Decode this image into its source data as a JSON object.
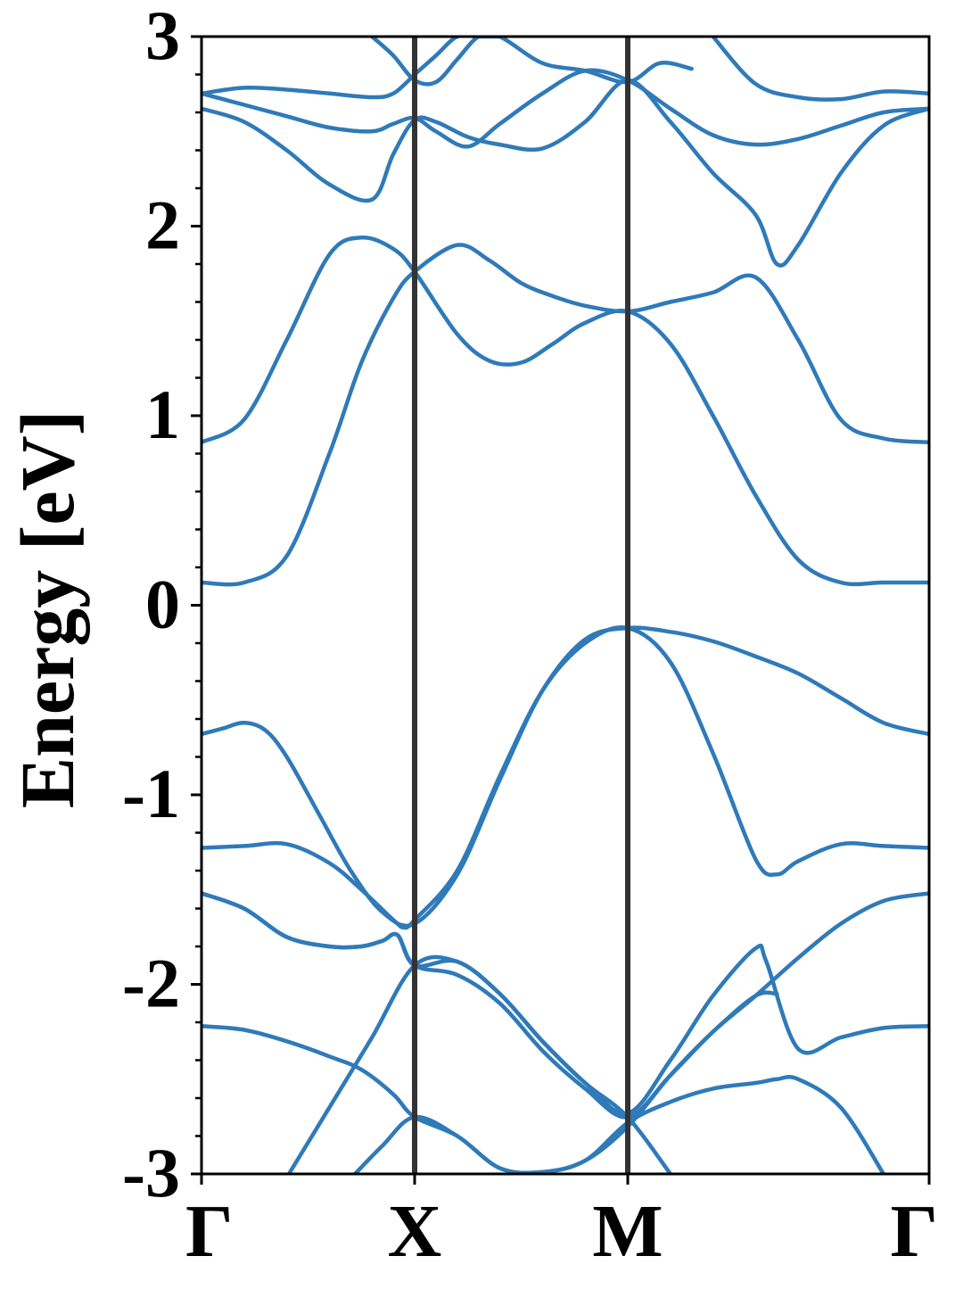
{
  "chart_data": {
    "type": "line",
    "title": "",
    "xlabel": "",
    "ylabel": "Energy [eV]",
    "xlim": [
      0,
      3.414
    ],
    "ylim": [
      -3,
      3
    ],
    "x_ticks": [
      {
        "value": 0,
        "label": "Γ"
      },
      {
        "value": 1,
        "label": "X"
      },
      {
        "value": 2,
        "label": "M"
      },
      {
        "value": 3.414,
        "label": "Γ"
      }
    ],
    "y_ticks": [
      {
        "value": -3,
        "label": "-3"
      },
      {
        "value": -2,
        "label": "-2"
      },
      {
        "value": -1,
        "label": "-1"
      },
      {
        "value": 0,
        "label": "0"
      },
      {
        "value": 1,
        "label": "1"
      },
      {
        "value": 2,
        "label": "2"
      },
      {
        "value": 3,
        "label": "3"
      }
    ],
    "y_minor_step": 0.2,
    "high_symmetry_lines": [
      1,
      2
    ],
    "grid": false,
    "line_color": "#2f7ab9",
    "divider_color": "#333333",
    "series": [
      {
        "x": [
          0,
          0.2,
          0.4,
          0.6,
          0.75,
          0.9,
          1.0,
          1.2,
          1.35,
          1.5,
          1.65,
          1.8,
          2.0,
          2.2,
          2.4,
          2.6,
          2.8,
          3.0,
          3.2,
          3.414
        ],
        "y": [
          0.12,
          0.12,
          0.26,
          0.8,
          1.28,
          1.62,
          1.76,
          1.9,
          1.82,
          1.7,
          1.63,
          1.58,
          1.55,
          1.6,
          1.65,
          1.73,
          1.4,
          0.98,
          0.88,
          0.86
        ]
      },
      {
        "x": [
          0,
          0.2,
          0.4,
          0.6,
          0.75,
          0.9,
          1.0,
          1.2,
          1.35,
          1.5,
          1.65,
          1.8,
          2.0,
          2.2,
          2.4,
          2.6,
          2.8,
          3.0,
          3.2,
          3.414
        ],
        "y": [
          0.86,
          0.98,
          1.4,
          1.85,
          1.94,
          1.88,
          1.76,
          1.43,
          1.29,
          1.28,
          1.38,
          1.49,
          1.55,
          1.38,
          1.0,
          0.58,
          0.24,
          0.12,
          0.12,
          0.12
        ]
      },
      {
        "x": [
          0,
          0.2,
          0.4,
          0.6,
          0.8,
          0.9,
          1.0,
          1.1,
          1.25,
          1.4,
          1.6,
          1.8,
          2.0,
          2.2,
          2.4,
          2.6,
          2.7,
          2.8,
          3.0,
          3.2,
          3.414
        ],
        "y": [
          2.62,
          2.55,
          2.4,
          2.22,
          2.14,
          2.38,
          2.56,
          2.55,
          2.47,
          2.43,
          2.41,
          2.55,
          2.77,
          2.55,
          2.28,
          2.06,
          1.8,
          1.9,
          2.28,
          2.53,
          2.62
        ]
      },
      {
        "x": [
          0,
          0.2,
          0.4,
          0.6,
          0.8,
          0.9,
          1.0,
          1.1,
          1.25,
          1.4,
          1.6,
          1.8,
          2.0,
          2.2,
          2.4,
          2.6,
          2.8,
          3.0,
          3.2,
          3.414
        ],
        "y": [
          2.7,
          2.64,
          2.58,
          2.52,
          2.5,
          2.54,
          2.57,
          2.5,
          2.42,
          2.54,
          2.7,
          2.82,
          2.77,
          2.62,
          2.48,
          2.43,
          2.46,
          2.53,
          2.6,
          2.62
        ]
      },
      {
        "x": [
          0,
          0.2,
          0.4,
          0.6,
          0.8,
          0.9,
          1.0
        ],
        "y": [
          2.7,
          2.73,
          2.72,
          2.7,
          2.68,
          2.7,
          2.8
        ]
      },
      {
        "x": [
          0.8,
          0.9,
          1.0,
          1.1,
          1.2,
          1.3,
          1.4,
          1.6,
          1.8,
          2.0,
          2.15,
          2.3
        ],
        "y": [
          3.0,
          2.9,
          2.77,
          2.76,
          2.88,
          3.0,
          3.0,
          2.86,
          2.82,
          2.76,
          2.86,
          2.83
        ]
      },
      {
        "x": [
          1.0,
          1.1,
          1.2,
          1.3,
          1.4
        ],
        "y": [
          2.8,
          2.9,
          3.0,
          3.0,
          3.0
        ]
      },
      {
        "x": [
          2.4,
          2.6,
          2.8,
          3.0,
          3.2,
          3.414
        ],
        "y": [
          3.0,
          2.75,
          2.68,
          2.67,
          2.71,
          2.7
        ]
      },
      {
        "x": [
          0,
          0.1,
          0.2,
          0.3,
          0.4,
          0.55,
          0.7,
          0.85,
          1.0,
          1.2,
          1.4,
          1.6,
          1.8,
          2.0,
          2.2,
          2.4,
          2.6,
          2.8,
          3.0,
          3.2,
          3.414
        ],
        "y": [
          -0.68,
          -0.65,
          -0.62,
          -0.66,
          -0.8,
          -1.1,
          -1.4,
          -1.62,
          -1.68,
          -1.42,
          -0.92,
          -0.45,
          -0.18,
          -0.12,
          -0.14,
          -0.19,
          -0.27,
          -0.36,
          -0.49,
          -0.62,
          -0.68
        ]
      },
      {
        "x": [
          0,
          0.2,
          0.4,
          0.6,
          0.75,
          0.9,
          0.95,
          1.0,
          1.2,
          1.4,
          1.6,
          1.8,
          2.0,
          2.2,
          2.4,
          2.6,
          2.7,
          2.8,
          3.0,
          3.2,
          3.414
        ],
        "y": [
          -1.28,
          -1.27,
          -1.26,
          -1.36,
          -1.5,
          -1.66,
          -1.7,
          -1.66,
          -1.4,
          -0.9,
          -0.45,
          -0.2,
          -0.12,
          -0.3,
          -0.78,
          -1.34,
          -1.42,
          -1.35,
          -1.26,
          -1.27,
          -1.28
        ]
      },
      {
        "x": [
          0,
          0.2,
          0.4,
          0.6,
          0.75,
          0.85,
          0.92,
          1.0,
          1.2,
          1.4,
          1.6,
          1.8,
          2.0,
          2.2,
          2.4,
          2.6,
          2.8,
          3.0,
          3.2,
          3.414
        ],
        "y": [
          -1.52,
          -1.6,
          -1.75,
          -1.8,
          -1.8,
          -1.77,
          -1.74,
          -1.9,
          -1.95,
          -2.1,
          -2.35,
          -2.55,
          -2.7,
          -2.48,
          -2.25,
          -2.06,
          -1.86,
          -1.68,
          -1.56,
          -1.52
        ]
      },
      {
        "x": [
          0,
          0.2,
          0.4,
          0.6,
          0.75,
          0.85,
          0.92,
          1.0,
          1.2,
          1.4,
          1.6,
          1.8,
          2.0,
          2.2,
          2.4,
          2.6,
          2.65,
          2.8,
          3.0,
          3.2,
          3.414
        ],
        "y": [
          -1.52,
          -1.6,
          -1.75,
          -1.8,
          -1.8,
          -1.77,
          -1.74,
          -1.9,
          -1.88,
          -2.05,
          -2.3,
          -2.52,
          -2.68,
          -2.4,
          -2.06,
          -1.81,
          -1.88,
          -2.34,
          -2.28,
          -2.23,
          -2.22
        ]
      },
      {
        "x": [
          0,
          0.2,
          0.4,
          0.6,
          0.75,
          0.9,
          1.0,
          1.2,
          1.4,
          1.6,
          1.8,
          2.0,
          2.2,
          2.4,
          2.6,
          2.7,
          2.8,
          3.0,
          3.2
        ],
        "y": [
          -2.22,
          -2.24,
          -2.3,
          -2.38,
          -2.45,
          -2.58,
          -2.7,
          -2.8,
          -2.97,
          -2.99,
          -2.93,
          -2.73,
          -2.62,
          -2.55,
          -2.52,
          -2.5,
          -2.5,
          -2.65,
          -3.0
        ]
      },
      {
        "x": [
          0.41,
          0.6,
          0.8,
          1.0,
          1.2,
          1.4,
          1.6,
          1.8,
          2.0,
          2.2
        ],
        "y": [
          -3.0,
          -2.65,
          -2.28,
          -1.9,
          -1.88,
          -2.05,
          -2.3,
          -2.52,
          -2.7,
          -3.0
        ]
      },
      {
        "x": [
          0.72,
          0.85,
          1.0,
          1.2,
          1.4,
          1.6,
          1.8,
          2.0,
          2.2,
          2.4,
          2.6,
          2.7
        ],
        "y": [
          -3.0,
          -2.85,
          -2.7,
          -2.8,
          -2.97,
          -2.99,
          -2.93,
          -2.75,
          -2.48,
          -2.25,
          -2.06,
          -2.05
        ]
      }
    ]
  }
}
